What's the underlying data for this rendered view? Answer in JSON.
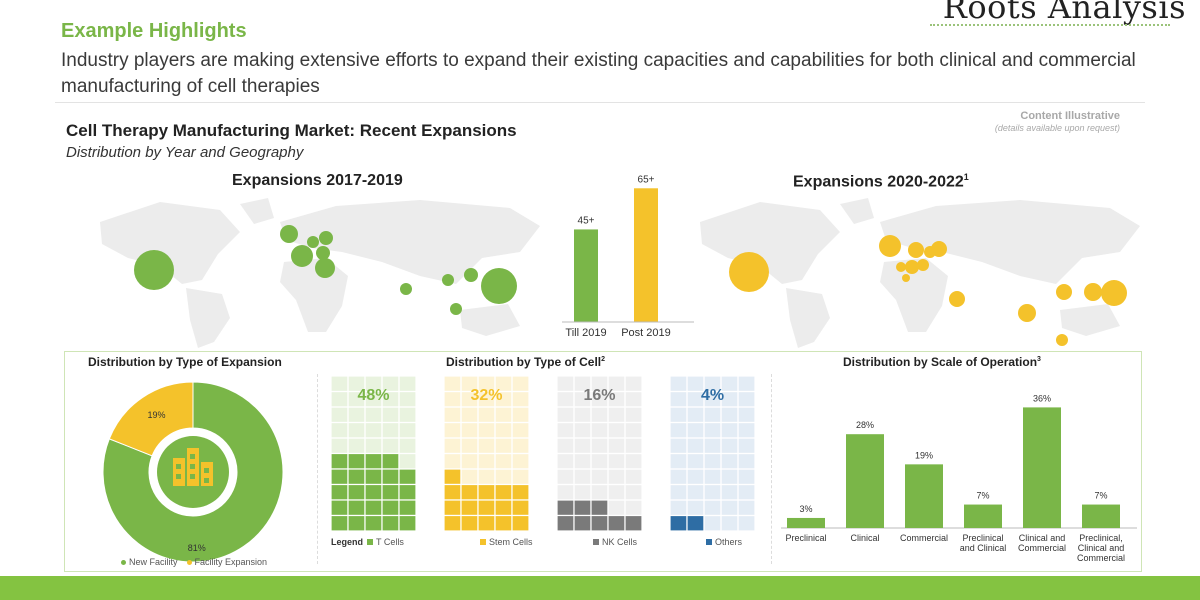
{
  "brand": {
    "name": "Roots Analysis"
  },
  "header": {
    "title": "Example Highlights",
    "description": "Industry players are making extensive efforts to expand their existing capacities and capabilities for both clinical and commercial manufacturing of cell therapies"
  },
  "slide": {
    "title": "Cell Therapy Manufacturing Market: Recent Expansions",
    "subtitle": "Distribution by Year and Geography",
    "note_1": "Content Illustrative",
    "note_2": "(details available upon request)"
  },
  "colors": {
    "green": "#7ab648",
    "yellow": "#f4c22b",
    "grey": "#7a7a7a",
    "blue": "#2e6da4",
    "map": "#ececec",
    "footer_band": "#84c341"
  },
  "maps": {
    "left": {
      "title": "Expansions 2017-2019"
    },
    "right": {
      "title": "Expansions 2020-2022",
      "sup": "1"
    }
  },
  "panels": {
    "type_of_expansion": {
      "title": "Distribution by Type of Expansion",
      "icon": "buildings-icon"
    },
    "type_of_cell": {
      "title": "Distribution by Type of Cell",
      "sup": "2",
      "legend_label": "Legend"
    },
    "scale_of_operation": {
      "title": "Distribution by Scale of Operation",
      "sup": "3"
    }
  },
  "chart_data": [
    {
      "type": "bar",
      "categories": [
        "Till 2019",
        "Post 2019"
      ],
      "values": [
        45,
        65
      ],
      "data_labels": [
        "45+",
        "65+"
      ],
      "colors": [
        "#7ab648",
        "#f4c22b"
      ],
      "ylim": [
        0,
        70
      ]
    },
    {
      "type": "pie",
      "title": "Distribution by Type of Expansion",
      "labels": [
        "New Facility",
        "Facility Expansion"
      ],
      "values": [
        81,
        19
      ],
      "data_labels": [
        "81%",
        "19%"
      ],
      "colors": [
        "#7ab648",
        "#f4c22b"
      ],
      "legend_position": "bottom"
    },
    {
      "type": "waffle",
      "title": "Distribution by Type of Cell",
      "labels": [
        "T Cells",
        "Stem Cells",
        "NK Cells",
        "Others"
      ],
      "values": [
        48,
        32,
        16,
        4
      ],
      "data_labels": [
        "48%",
        "32%",
        "16%",
        "4%"
      ],
      "colors": [
        "#7ab648",
        "#f4c22b",
        "#7a7a7a",
        "#2e6da4"
      ],
      "legend_position": "bottom"
    },
    {
      "type": "bar",
      "title": "Distribution by Scale of Operation",
      "categories": [
        "Preclinical",
        "Clinical",
        "Commercial",
        "Preclinical and Clinical",
        "Clinical and Commercial",
        "Preclinical, Clinical and Commercial"
      ],
      "category_lines": [
        [
          "Preclinical"
        ],
        [
          "Clinical"
        ],
        [
          "Commercial"
        ],
        [
          "Preclinical",
          "and Clinical"
        ],
        [
          "Clinical and",
          "Commercial"
        ],
        [
          "Preclinical,",
          "Clinical and",
          "Commercial"
        ]
      ],
      "values": [
        3,
        28,
        19,
        7,
        36,
        7
      ],
      "data_labels": [
        "3%",
        "28%",
        "19%",
        "7%",
        "36%",
        "7%"
      ],
      "color": "#7ab648",
      "ylim": [
        0,
        40
      ]
    }
  ]
}
